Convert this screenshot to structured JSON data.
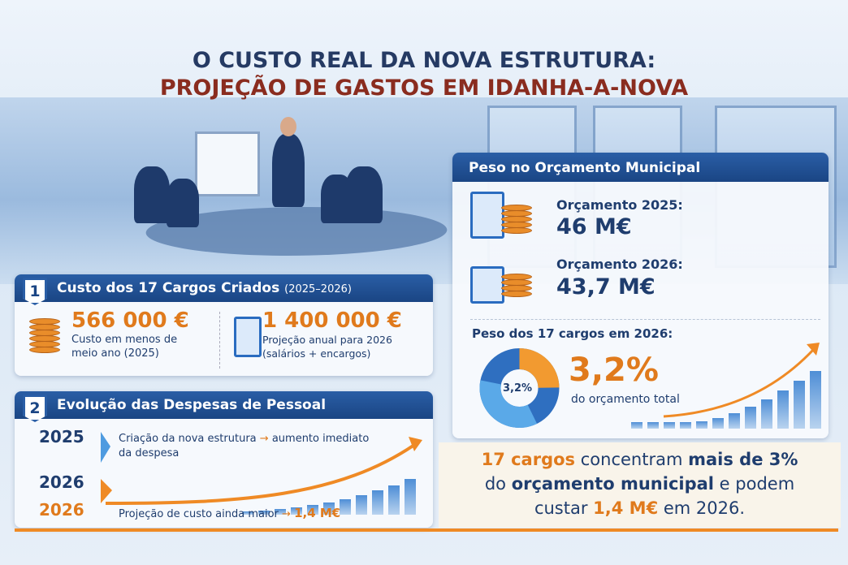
{
  "title": {
    "line1": "O CUSTO REAL DA NOVA ESTRUTURA:",
    "line2": "PROJEÇÃO DE GASTOS EM IDANHA-A-NOVA"
  },
  "section1": {
    "number": "1",
    "title": "Custo dos 17 Cargos Criados",
    "period": "(2025–2026)",
    "left": {
      "value": "566 000 €",
      "desc1": "Custo em menos de",
      "desc2": "meio ano (2025)"
    },
    "right": {
      "value": "1 400 000 €",
      "desc1": "Projeção anual para 2026",
      "desc2": "(salários + encargos)"
    }
  },
  "section2": {
    "number": "2",
    "title": "Evolução das Despesas de Pessoal",
    "rows": [
      {
        "year": "2025",
        "text1": "Criação da nova estrutura",
        "arrow": "→",
        "text2": "aumento imediato",
        "text3": "da despesa"
      },
      {
        "year": "2026"
      },
      {
        "year": "2026",
        "text1": "Projeção de custo ainda maior",
        "arrow": "→",
        "highlight": "1,4 M€"
      }
    ]
  },
  "budget": {
    "title": "Peso no Orçamento Municipal",
    "items": [
      {
        "label": "Orçamento 2025:",
        "value": "46 M€"
      },
      {
        "label": "Orçamento 2026:",
        "value": "43,7 M€"
      }
    ],
    "weight_label": "Peso dos 17 cargos em 2026:",
    "donut_label": "3,2%",
    "percent": "3,2%",
    "percent_desc": "do orçamento total"
  },
  "callout": {
    "p1": "17 cargos",
    "p2": " concentram ",
    "p3": "mais de 3%",
    "p4": "do ",
    "p5": "orçamento municipal",
    "p6": " e podem",
    "p7": "custar ",
    "p8": "1,4 M€",
    "p9": " em 2026."
  },
  "colors": {
    "navy": "#1f3d6e",
    "orange": "#e07a1c",
    "header": "#1a4584"
  }
}
